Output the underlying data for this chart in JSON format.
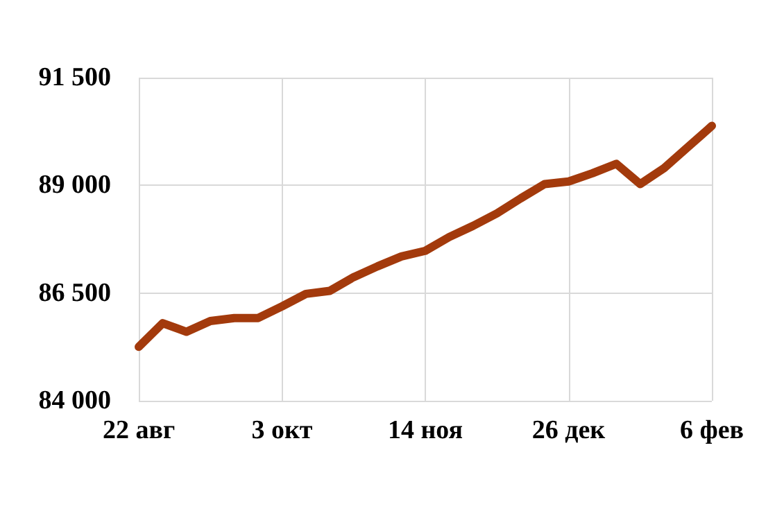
{
  "chart_data": {
    "type": "line",
    "categories": [
      "22 авг",
      null,
      null,
      null,
      null,
      null,
      "3 окт",
      null,
      null,
      null,
      null,
      null,
      "14 ноя",
      null,
      null,
      null,
      null,
      null,
      "26 дек",
      null,
      null,
      null,
      null,
      null,
      "6 фев"
    ],
    "series": [
      {
        "color": "#a33a0c",
        "values": [
          85250,
          85800,
          85600,
          85850,
          85920,
          85920,
          86190,
          86480,
          86550,
          86870,
          87120,
          87350,
          87480,
          87800,
          88060,
          88350,
          88700,
          89030,
          89090,
          89280,
          89500,
          89030,
          89400,
          89890,
          90380
        ]
      }
    ],
    "ylim": [
      84000,
      91500
    ],
    "yticks": [
      {
        "value": 84000,
        "label": "84 000"
      },
      {
        "value": 86500,
        "label": "86 500"
      },
      {
        "value": 89000,
        "label": "89 000"
      },
      {
        "value": 91500,
        "label": "91 500"
      }
    ],
    "grid": true,
    "marker": "none",
    "line_style": "solid"
  }
}
